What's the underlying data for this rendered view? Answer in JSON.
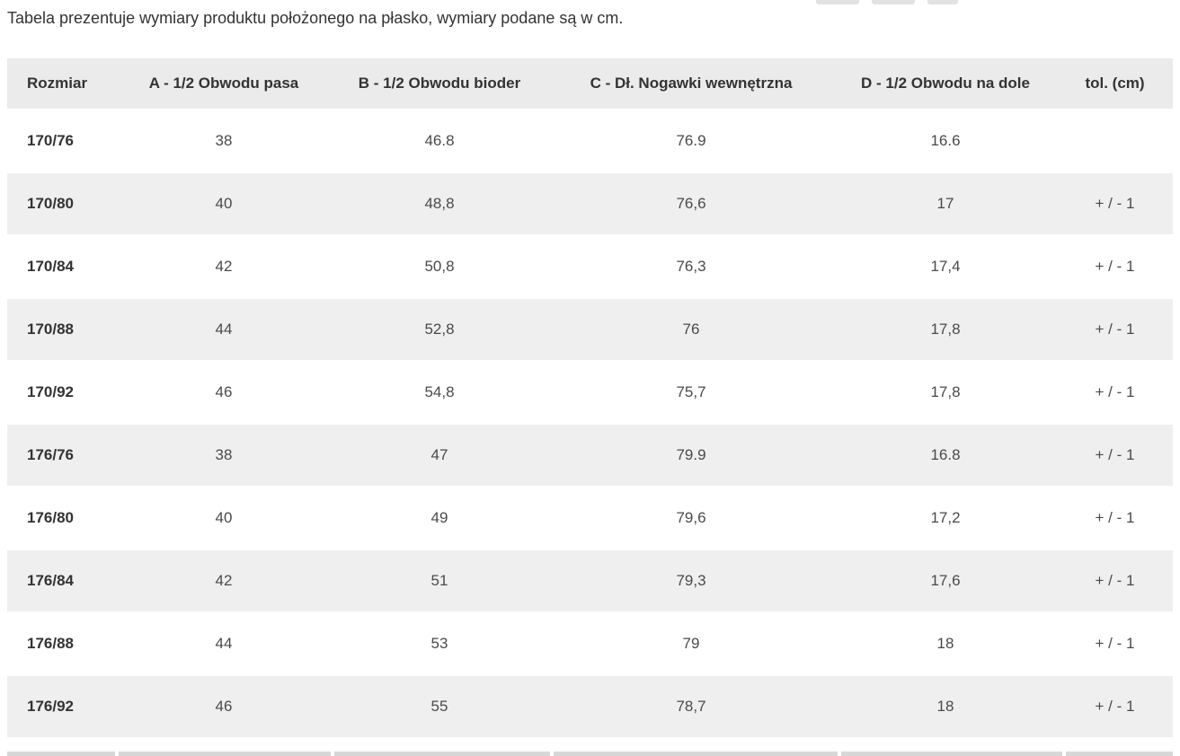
{
  "intro": "Tabela prezentuje wymiary produktu położonego na płasko, wymiary podane są w cm.",
  "colors": {
    "header_bg": "#ebebeb",
    "alt_row_bg": "#efefef",
    "text": "#333333",
    "data_text": "#4a4a4a"
  },
  "chart_data": {
    "type": "table",
    "title": "Tabela prezentuje wymiary produktu położonego na płasko, wymiary podane są w cm.",
    "headers": [
      "Rozmiar",
      "A - 1/2 Obwodu pasa",
      "B - 1/2 Obwodu bioder",
      "C - Dł. Nogawki wewnętrzna",
      "D - 1/2 Obwodu na dole",
      "tol. (cm)"
    ],
    "rows": [
      [
        "170/76",
        "38",
        "46.8",
        "76.9",
        "16.6",
        ""
      ],
      [
        "170/80",
        "40",
        "48,8",
        "76,6",
        "17",
        "+ / - 1"
      ],
      [
        "170/84",
        "42",
        "50,8",
        "76,3",
        "17,4",
        "+ / - 1"
      ],
      [
        "170/88",
        "44",
        "52,8",
        "76",
        "17,8",
        "+ / - 1"
      ],
      [
        "170/92",
        "46",
        "54,8",
        "75,7",
        "17,8",
        "+ / - 1"
      ],
      [
        "176/76",
        "38",
        "47",
        "79.9",
        "16.8",
        "+ / - 1"
      ],
      [
        "176/80",
        "40",
        "49",
        "79,6",
        "17,2",
        "+ / - 1"
      ],
      [
        "176/84",
        "42",
        "51",
        "79,3",
        "17,6",
        "+ / - 1"
      ],
      [
        "176/88",
        "44",
        "53",
        "79",
        "18",
        "+ / - 1"
      ],
      [
        "176/92",
        "46",
        "55",
        "78,7",
        "18",
        "+ / - 1"
      ]
    ]
  }
}
